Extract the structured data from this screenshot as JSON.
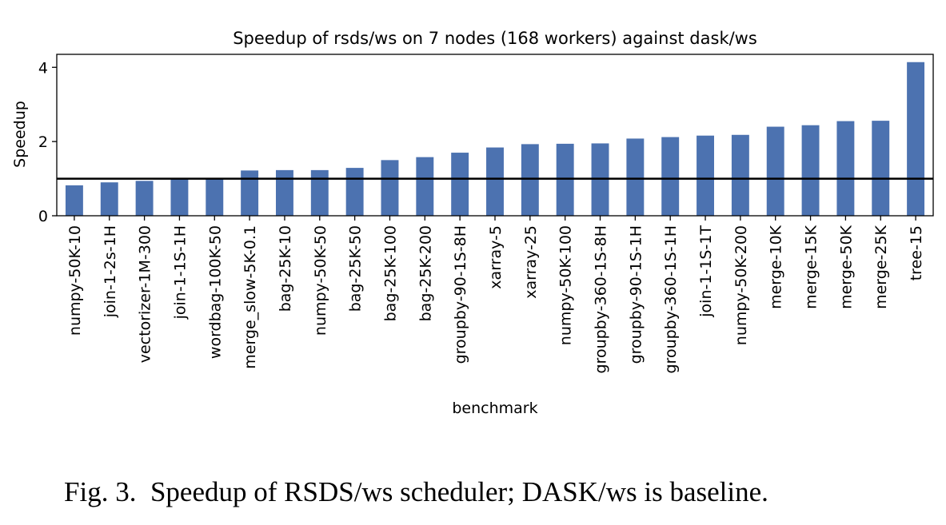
{
  "chart_data": {
    "type": "bar",
    "title": "Speedup of rsds/ws on 7 nodes (168 workers) against dask/ws",
    "xlabel": "benchmark",
    "ylabel": "Speedup",
    "ylim": [
      0,
      4.35
    ],
    "yticks": [
      0,
      2,
      4
    ],
    "baseline": 1.0,
    "bar_color": "#4c72b0",
    "grid": false,
    "categories": [
      "numpy-50K-10",
      "join-1-2s-1H",
      "vectorizer-1M-300",
      "join-1-1S-1H",
      "wordbag-100K-50",
      "merge_slow-5K-0.1",
      "bag-25K-10",
      "numpy-50K-50",
      "bag-25K-50",
      "bag-25K-100",
      "bag-25K-200",
      "groupby-90-1S-8H",
      "xarray-5",
      "xarray-25",
      "numpy-50K-100",
      "groupby-360-1S-8H",
      "groupby-90-1S-1H",
      "groupby-360-1S-1H",
      "join-1-1S-1T",
      "numpy-50K-200",
      "merge-10K",
      "merge-15K",
      "merge-50K",
      "merge-25K",
      "tree-15"
    ],
    "values": [
      0.82,
      0.9,
      0.94,
      0.98,
      0.98,
      1.22,
      1.23,
      1.23,
      1.29,
      1.5,
      1.58,
      1.7,
      1.84,
      1.93,
      1.94,
      1.95,
      2.08,
      2.12,
      2.16,
      2.18,
      2.4,
      2.44,
      2.55,
      2.56,
      4.14
    ]
  },
  "caption": {
    "prefix": "Fig. 3.",
    "part1": "Speedup of ",
    "rsds_initial": "R",
    "rsds_rest": "SDS",
    "part2": "/ws scheduler; ",
    "dask_initial": "D",
    "dask_rest": "ASK",
    "part3": "/ws is baseline."
  }
}
